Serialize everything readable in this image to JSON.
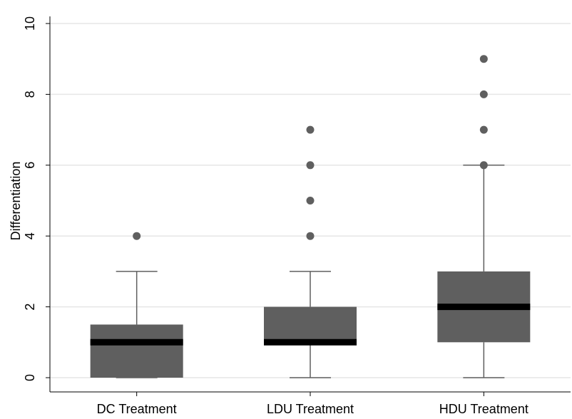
{
  "chart_data": {
    "type": "box",
    "y_label": "Differentiation",
    "categories": [
      "DC Treatment",
      "LDU Treatment",
      "HDU Treatment"
    ],
    "boxes": [
      {
        "min": 0,
        "q1": 0,
        "median": 1,
        "q3": 1.5,
        "max": 3,
        "outliers": [
          4
        ]
      },
      {
        "min": 0,
        "q1": 1,
        "median": 1,
        "q3": 2,
        "max": 3,
        "outliers": [
          4,
          5,
          6,
          7
        ]
      },
      {
        "min": 0,
        "q1": 1,
        "median": 2,
        "q3": 3,
        "max": 6,
        "outliers": [
          6,
          7,
          8,
          9
        ]
      }
    ],
    "color": "#5f5f5f",
    "median_color": "#000000",
    "ylim": [
      0,
      10
    ],
    "yticks": [
      0,
      2,
      4,
      6,
      8,
      10
    ],
    "grid": true
  }
}
